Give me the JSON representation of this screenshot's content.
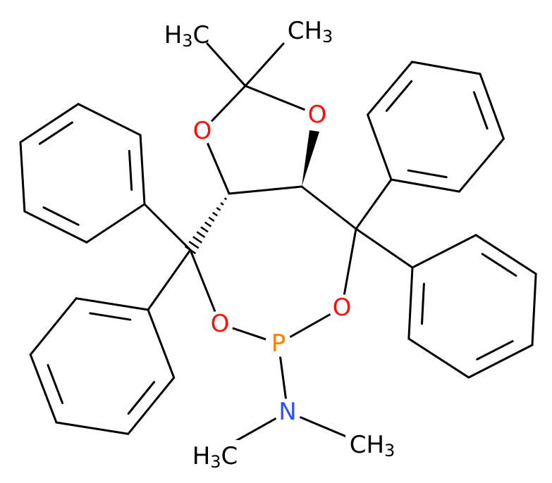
{
  "atoms": [
    {
      "text": [
        "H",
        "3",
        "C"
      ]
    },
    {
      "text": [
        "CH",
        "3"
      ]
    },
    {
      "text": [
        "O"
      ]
    },
    {
      "text": [
        "O"
      ]
    },
    {
      "text": [
        "O"
      ]
    },
    {
      "text": [
        "O"
      ]
    },
    {
      "text": [
        "P"
      ]
    },
    {
      "text": [
        "N"
      ]
    },
    {
      "text": [
        "H",
        "3",
        "C"
      ]
    },
    {
      "text": [
        "CH",
        "3"
      ]
    }
  ]
}
